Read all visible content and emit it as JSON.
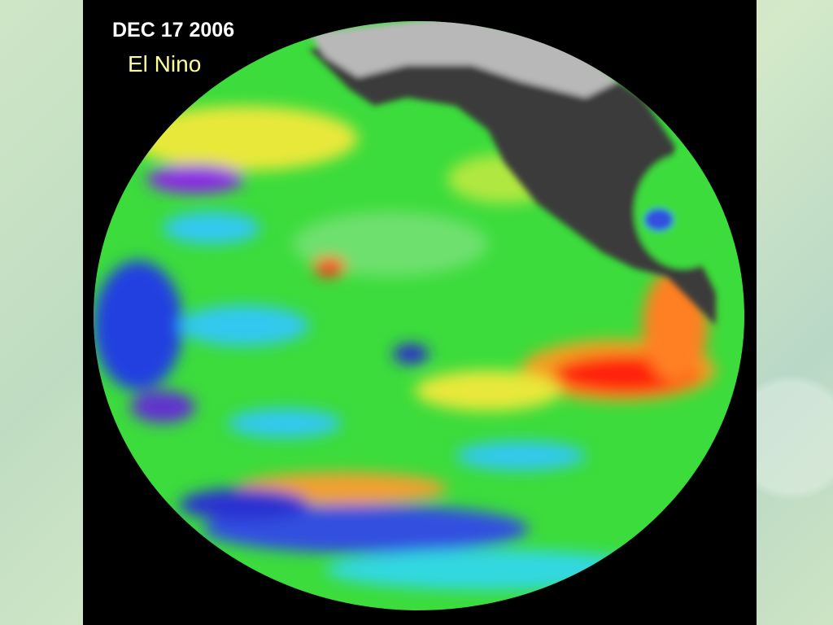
{
  "image": {
    "date": "DEC 17 2006",
    "caption": "El Nino"
  }
}
